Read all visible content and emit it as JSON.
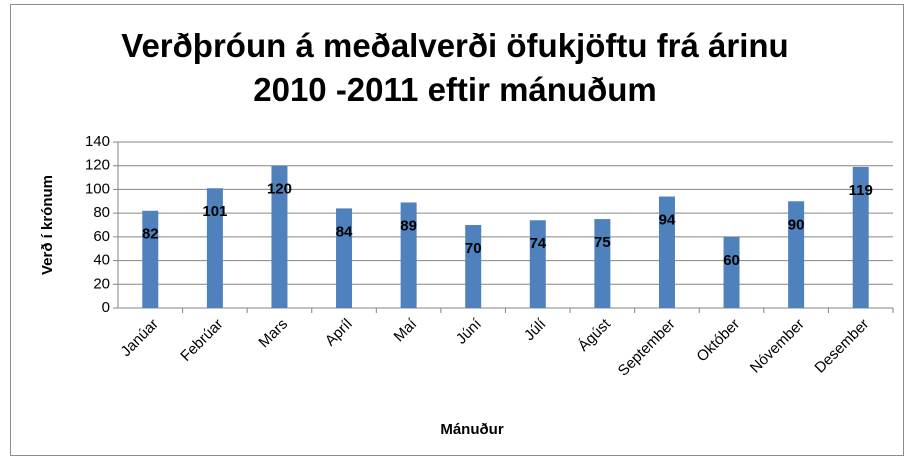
{
  "chart_data": {
    "type": "bar",
    "title": "Verðþróun á meðalverði öfukjöftu frá árinu 2010 -2011 eftir mánuðum",
    "x_label": "Mánuður",
    "y_label": "Verð í krónum",
    "categories": [
      "Janúar",
      "Febrúar",
      "Mars",
      "Apríl",
      "Maí",
      "Júní",
      "Júlí",
      "Ágúst",
      "September",
      "Október",
      "Nóvember",
      "Desember"
    ],
    "values": [
      82,
      101,
      120,
      84,
      89,
      70,
      74,
      75,
      94,
      60,
      90,
      119
    ],
    "color": "#4f81bd",
    "ylim": [
      0,
      140
    ],
    "yticks": [
      0,
      20,
      40,
      60,
      80,
      100,
      120,
      140
    ],
    "grid": true
  }
}
